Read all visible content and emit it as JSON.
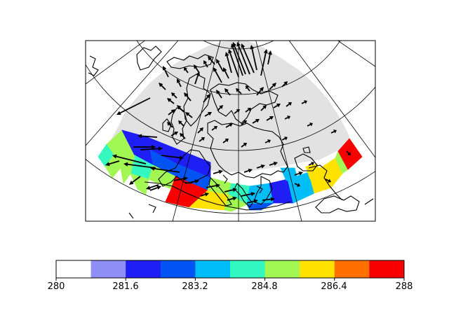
{
  "map": {
    "projection": "polar-stereographic",
    "field_colors": [
      "#ffffff",
      "#8f8ff7",
      "#1e1ef5",
      "#0454f3",
      "#00bff8",
      "#33f8c0",
      "#a3f752",
      "#ffe200",
      "#ff7000",
      "#f80000"
    ],
    "masked_color": "#e2e2e2",
    "coastline_color": "#000000",
    "graticule_color": "#000000",
    "vector_color": "#000000"
  },
  "colorbar": {
    "min": 280,
    "max": 288,
    "boundaries": [
      280,
      280.8,
      281.6,
      282.4,
      283.2,
      284.0,
      284.8,
      285.6,
      286.4,
      287.2,
      288
    ],
    "colors": [
      "#ffffff",
      "#8f8ff7",
      "#1e1ef5",
      "#0454f3",
      "#00bff8",
      "#33f8c0",
      "#a3f752",
      "#ffe200",
      "#ff7000",
      "#f80000"
    ],
    "tick_labels": [
      "280",
      "281.6",
      "283.2",
      "284.8",
      "286.4",
      "288"
    ]
  }
}
